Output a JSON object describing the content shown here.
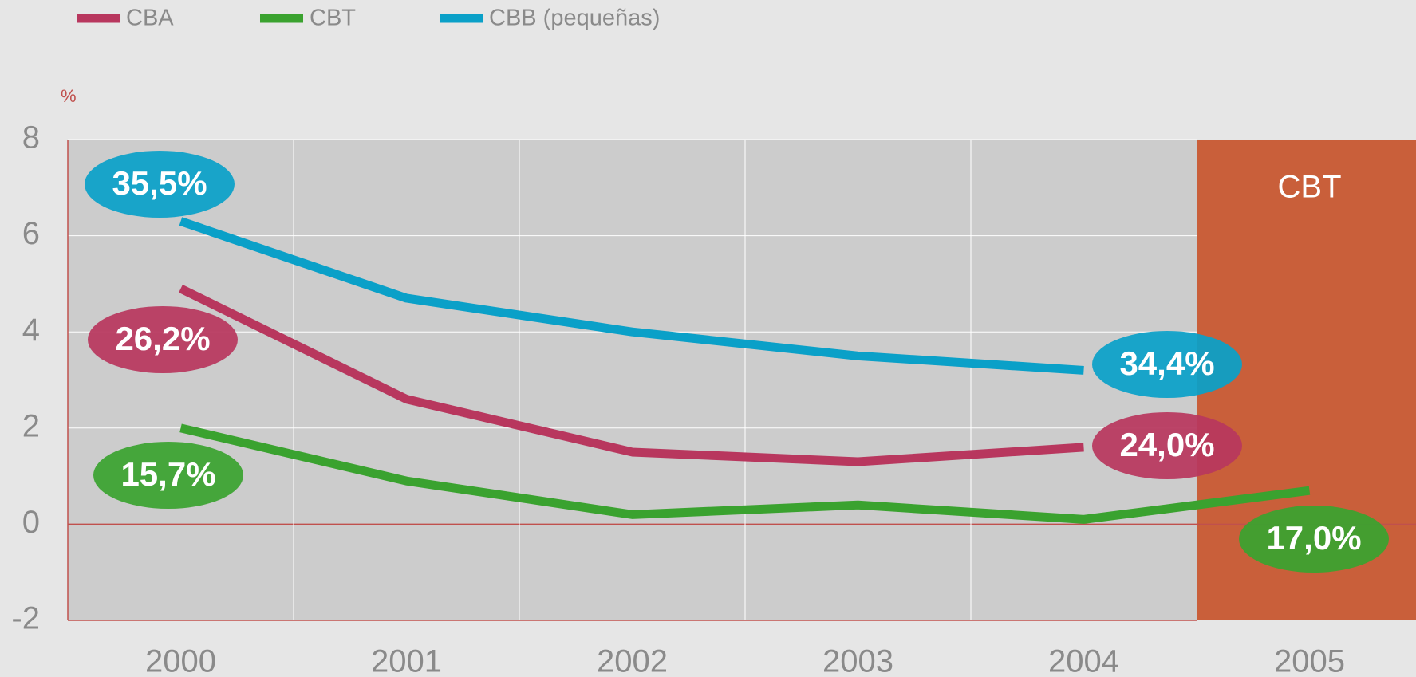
{
  "chart_data": {
    "type": "line",
    "y_unit_label": "%",
    "categories": [
      "2000",
      "2001",
      "2002",
      "2003",
      "2004",
      "2005"
    ],
    "series": [
      {
        "name": "CBA",
        "color": "#b8375e",
        "values": [
          4.9,
          2.6,
          1.5,
          1.3,
          1.6,
          null
        ]
      },
      {
        "name": "CBT",
        "color": "#3aa22f",
        "values": [
          2.0,
          0.9,
          0.2,
          0.4,
          0.1,
          0.7
        ]
      },
      {
        "name": "CBB (pequeñas)",
        "color": "#0aa0c8",
        "values": [
          6.3,
          4.7,
          4.0,
          3.5,
          3.2,
          null
        ]
      }
    ],
    "annotations": [
      {
        "text": "35,5%",
        "color": "#0aa0c8"
      },
      {
        "text": "26,2%",
        "color": "#b8375e"
      },
      {
        "text": "15,7%",
        "color": "#3aa22f"
      },
      {
        "text": "34,4%",
        "color": "#0aa0c8"
      },
      {
        "text": "24,0%",
        "color": "#b8375e"
      },
      {
        "text": "17,0%",
        "color": "#3aa22f"
      }
    ],
    "highlight": {
      "label": "CBT",
      "color": "#c95f3a"
    },
    "ylim": [
      -2,
      8
    ],
    "yticks": [
      -2,
      0,
      2,
      4,
      6,
      8
    ],
    "grid": true
  }
}
